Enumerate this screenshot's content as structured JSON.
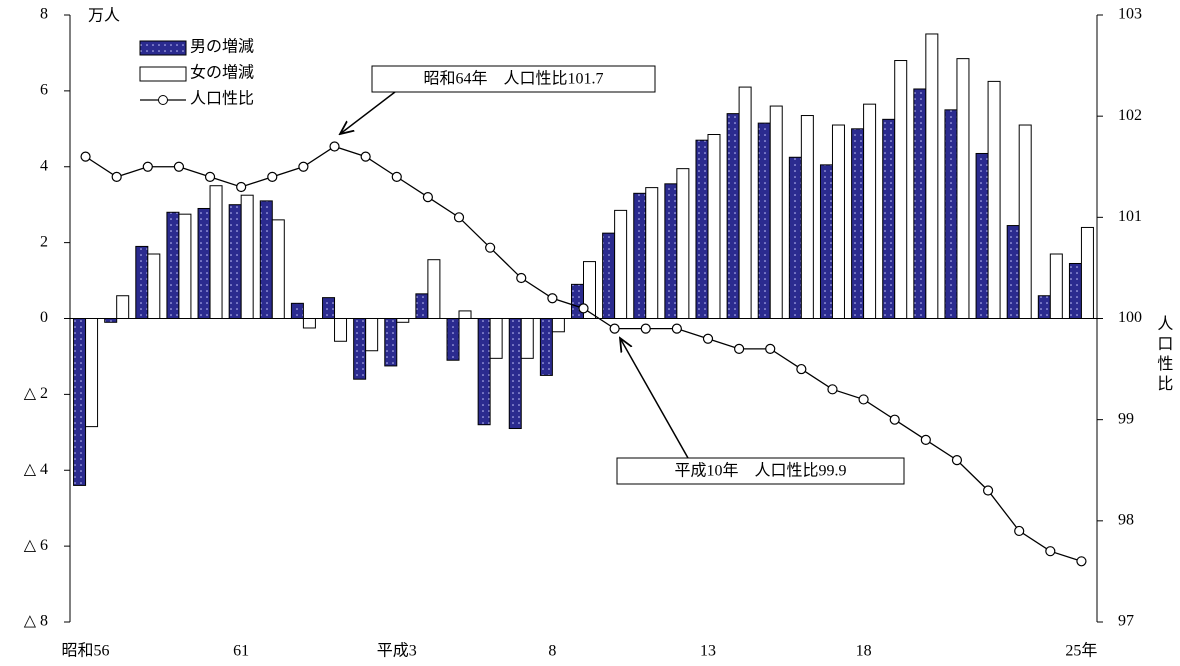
{
  "chart_data": {
    "type": "bar",
    "y_unit": "万人",
    "y2_label": "人口性比",
    "categories": [
      "昭和56",
      null,
      null,
      null,
      null,
      "61",
      null,
      null,
      null,
      null,
      "平成3",
      null,
      null,
      null,
      null,
      "8",
      null,
      null,
      null,
      null,
      "13",
      null,
      null,
      null,
      null,
      "18",
      null,
      null,
      null,
      null,
      null,
      null,
      "25年"
    ],
    "series": [
      {
        "name": "男の増減",
        "type": "bar",
        "color": "#2b2b8f",
        "values": [
          -4.4,
          -0.1,
          1.9,
          2.8,
          2.9,
          3.0,
          3.1,
          0.4,
          0.55,
          -1.6,
          -1.25,
          0.65,
          -1.1,
          -2.8,
          -2.9,
          -1.5,
          0.9,
          2.25,
          3.3,
          3.55,
          4.7,
          5.4,
          5.15,
          4.25,
          4.05,
          5.0,
          5.25,
          6.05,
          5.5,
          4.35,
          2.45,
          0.6,
          1.45
        ]
      },
      {
        "name": "女の増減",
        "type": "bar",
        "color": "#ffffff",
        "values": [
          -2.85,
          0.6,
          1.7,
          2.75,
          3.5,
          3.25,
          2.6,
          -0.25,
          -0.6,
          -0.85,
          -0.1,
          1.55,
          0.2,
          -1.05,
          -1.05,
          -0.35,
          1.5,
          2.85,
          3.45,
          3.95,
          4.85,
          6.1,
          5.6,
          5.35,
          5.1,
          5.65,
          6.8,
          7.5,
          6.85,
          6.25,
          5.1,
          1.7,
          2.4
        ]
      },
      {
        "name": "人口性比",
        "type": "line",
        "axis": "y2",
        "color": "#000000",
        "values": [
          101.6,
          101.4,
          101.5,
          101.5,
          101.4,
          101.3,
          101.4,
          101.5,
          101.7,
          101.6,
          101.4,
          101.2,
          101.0,
          100.7,
          100.4,
          100.2,
          100.1,
          99.9,
          99.9,
          99.9,
          99.8,
          99.7,
          99.7,
          99.5,
          99.3,
          99.2,
          99.0,
          98.8,
          98.6,
          98.3,
          97.9,
          97.7,
          97.6
        ]
      }
    ],
    "ylim": [
      -8,
      8
    ],
    "yticks": [
      {
        "value": 8,
        "label": "8"
      },
      {
        "value": 6,
        "label": "6"
      },
      {
        "value": 4,
        "label": "4"
      },
      {
        "value": 2,
        "label": "2"
      },
      {
        "value": 0,
        "label": "0"
      },
      {
        "value": -2,
        "label": "△ 2"
      },
      {
        "value": -4,
        "label": "△ 4"
      },
      {
        "value": -6,
        "label": "△ 6"
      },
      {
        "value": -8,
        "label": "△ 8"
      }
    ],
    "y2lim": [
      97,
      103
    ],
    "y2ticks": [
      97,
      98,
      99,
      100,
      101,
      102,
      103
    ],
    "annotations": [
      "昭和64年　人口性比101.7",
      "平成10年　人口性比99.9"
    ]
  }
}
